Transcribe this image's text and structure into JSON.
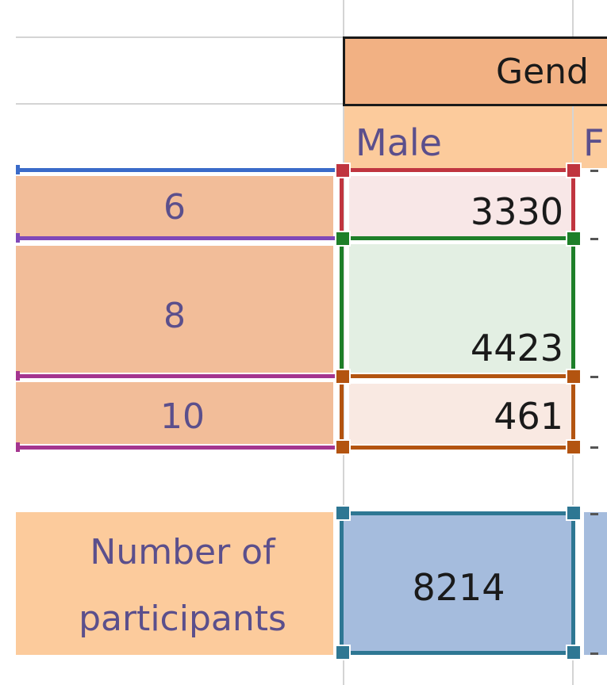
{
  "header": {
    "group_label": "Gend",
    "male_label": "Male",
    "next_col_label": "F"
  },
  "rows": [
    {
      "label": "6",
      "male": "3330"
    },
    {
      "label": "8",
      "male": "4423"
    },
    {
      "label": "10",
      "male": "461"
    }
  ],
  "total": {
    "label_line1": "Number of",
    "label_line2": "participants",
    "male": "8214"
  },
  "colors": {
    "header_fill": "#f2b183",
    "subheader_fill": "#fccb9c",
    "label_fill": "#f2bd99",
    "row6_fill": "#f8e7e7",
    "row8_fill": "#e3efe3",
    "row10_fill": "#f9e9e2",
    "total_fill": "#a5bcdd",
    "highlight_blue": "#3a6bc9",
    "highlight_red": "#c0353f",
    "highlight_purple": "#8048b8",
    "highlight_green": "#1e7f29",
    "highlight_magenta": "#a4358f",
    "highlight_orange": "#b35410",
    "highlight_teal": "#2e7793"
  }
}
